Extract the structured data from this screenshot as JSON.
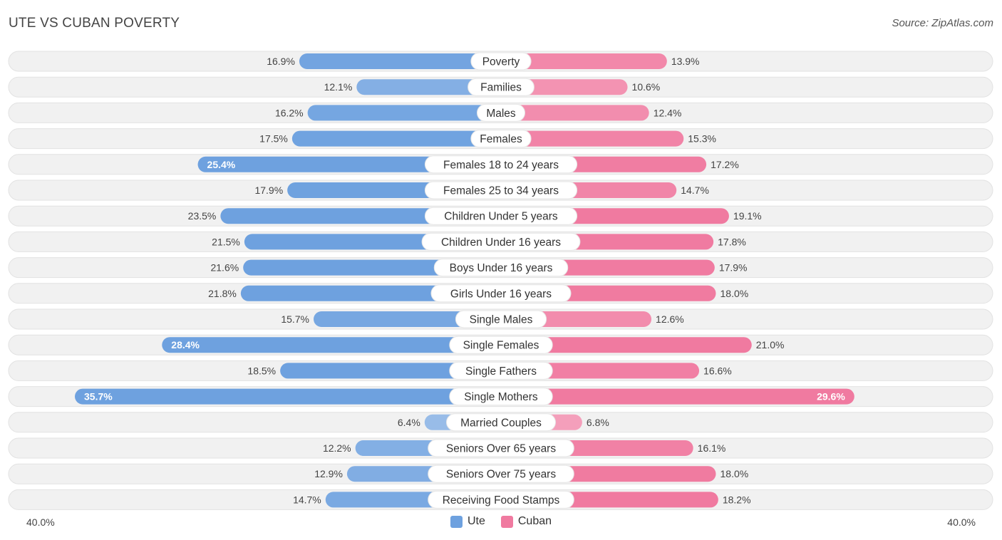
{
  "title": "UTE VS CUBAN POVERTY",
  "source": "Source: ZipAtlas.com",
  "axis": {
    "left_label": "40.0%",
    "right_label": "40.0%"
  },
  "legend": [
    {
      "name": "Ute",
      "color": "#6ea1df"
    },
    {
      "name": "Cuban",
      "color": "#f07aa0"
    }
  ],
  "chart_data": {
    "type": "bar",
    "orientation": "horizontal-diverging",
    "title": "UTE VS CUBAN POVERTY",
    "xlim": [
      -40,
      40
    ],
    "unit": "%",
    "categories": [
      "Poverty",
      "Families",
      "Males",
      "Females",
      "Females 18 to 24 years",
      "Females 25 to 34 years",
      "Children Under 5 years",
      "Children Under 16 years",
      "Boys Under 16 years",
      "Girls Under 16 years",
      "Single Males",
      "Single Females",
      "Single Fathers",
      "Single Mothers",
      "Married Couples",
      "Seniors Over 65 years",
      "Seniors Over 75 years",
      "Receiving Food Stamps"
    ],
    "series": [
      {
        "name": "Ute",
        "color": "#6ea1df",
        "values": [
          16.9,
          12.1,
          16.2,
          17.5,
          25.4,
          17.9,
          23.5,
          21.5,
          21.6,
          21.8,
          15.7,
          28.4,
          18.5,
          35.7,
          6.4,
          12.2,
          12.9,
          14.7
        ]
      },
      {
        "name": "Cuban",
        "color": "#f07aa0",
        "values": [
          13.9,
          10.6,
          12.4,
          15.3,
          17.2,
          14.7,
          19.1,
          17.8,
          17.9,
          18.0,
          12.6,
          21.0,
          16.6,
          29.6,
          6.8,
          16.1,
          18.0,
          18.2
        ]
      }
    ],
    "value_labels": {
      "Ute": [
        "16.9%",
        "12.1%",
        "16.2%",
        "17.5%",
        "25.4%",
        "17.9%",
        "23.5%",
        "21.5%",
        "21.6%",
        "21.8%",
        "15.7%",
        "28.4%",
        "18.5%",
        "35.7%",
        "6.4%",
        "12.2%",
        "12.9%",
        "14.7%"
      ],
      "Cuban": [
        "13.9%",
        "10.6%",
        "12.4%",
        "15.3%",
        "17.2%",
        "14.7%",
        "19.1%",
        "17.8%",
        "17.9%",
        "18.0%",
        "12.6%",
        "21.0%",
        "16.6%",
        "29.6%",
        "6.8%",
        "16.1%",
        "18.0%",
        "18.2%"
      ]
    }
  }
}
